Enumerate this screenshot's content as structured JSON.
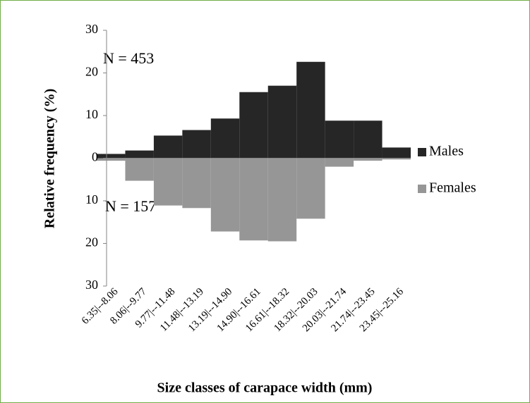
{
  "chart_data": {
    "type": "bar",
    "x_label": "Size classes of carapace width (mm)",
    "y_label": "Relative frequency (%)",
    "annotations": [
      "N = 453",
      "N = 157"
    ],
    "categories": [
      "6.35|--8.06",
      "8.06|--9.77",
      "9.77|--11.48",
      "11.48|--13.19",
      "13.19|--14.90",
      "14.90|--16.61",
      "16.61|--18.32",
      "18.32|--20.03",
      "20.03|--21.74",
      "21.74|--23.45",
      "23.45|--25.16"
    ],
    "series": [
      {
        "name": "Males",
        "color": "#262626",
        "values": [
          1.0,
          1.8,
          5.3,
          6.6,
          9.3,
          15.5,
          17.0,
          22.6,
          8.8,
          8.8,
          2.5
        ]
      },
      {
        "name": "Females",
        "color": "#969696",
        "values": [
          -0.6,
          -5.3,
          -11.1,
          -11.7,
          -17.2,
          -19.3,
          -19.5,
          -14.2,
          -2.0,
          -0.6,
          -0.3
        ]
      }
    ],
    "ylim": [
      -30,
      30
    ],
    "yticks": [
      {
        "value": -30,
        "label": "30"
      },
      {
        "value": -20,
        "label": "20"
      },
      {
        "value": -10,
        "label": "10"
      },
      0,
      10,
      20,
      30
    ],
    "legend": "right"
  }
}
